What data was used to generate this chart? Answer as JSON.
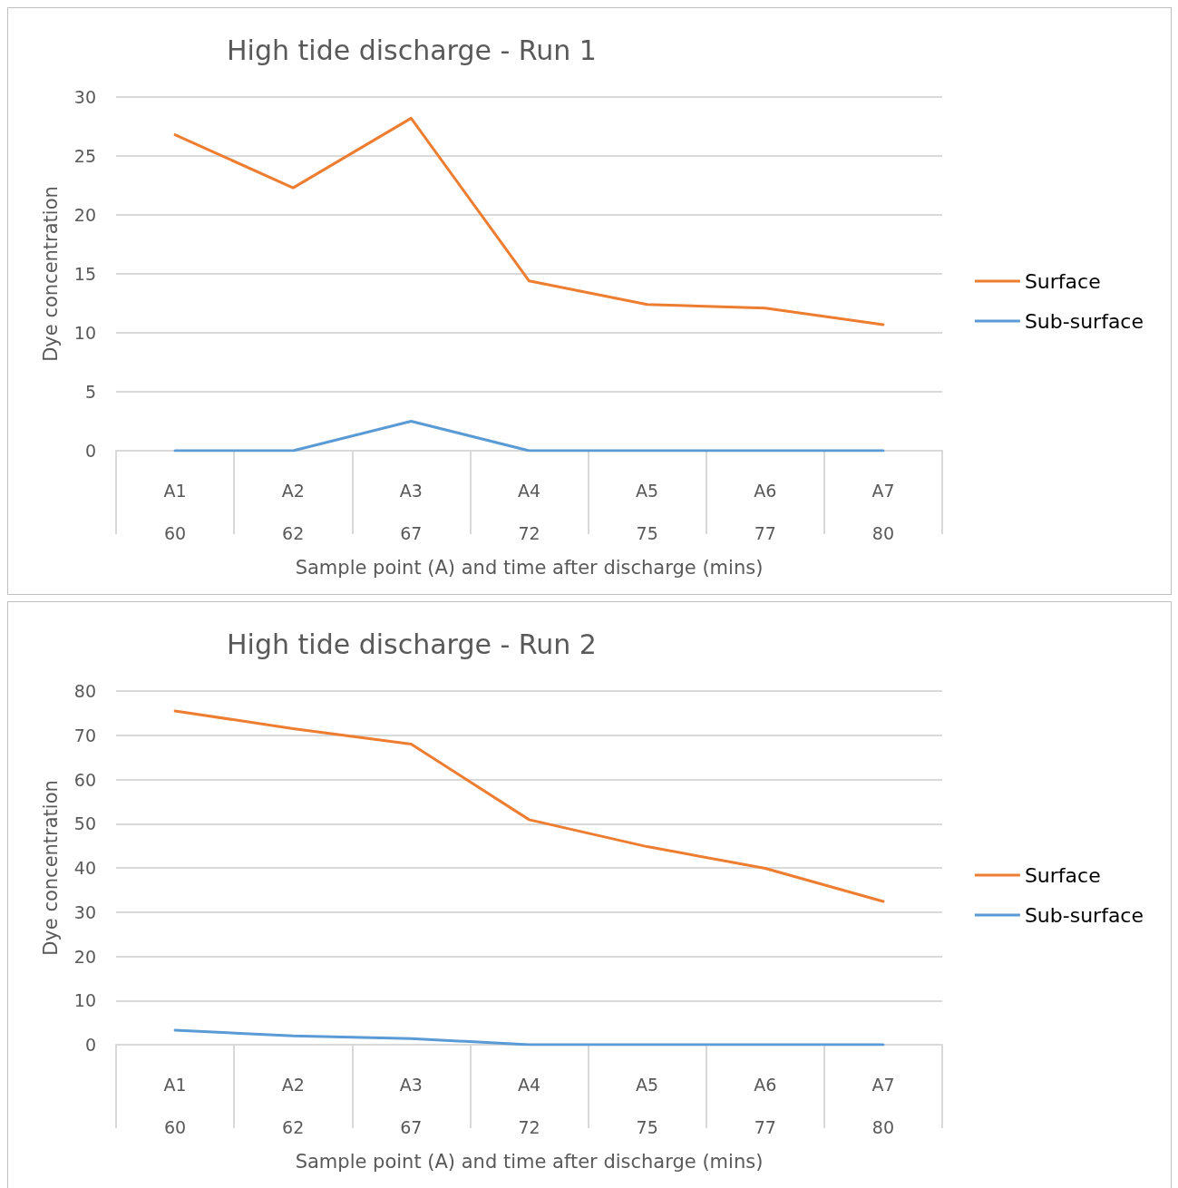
{
  "chart_data": [
    {
      "type": "line",
      "title": "High tide discharge - Run 1",
      "xlabel": "Sample point (A) and time after discharge (mins)",
      "ylabel": "Dye concentration",
      "categories": [
        "A1\n60",
        "A2\n62",
        "A3\n67",
        "A4\n72",
        "A5\n75",
        "A6\n77",
        "A7\n80"
      ],
      "series": [
        {
          "name": "Surface",
          "color": "#ed7d31",
          "values": [
            26.8,
            22.3,
            28.2,
            14.4,
            12.4,
            12.1,
            10.7
          ]
        },
        {
          "name": "Sub-surface",
          "color": "#5b9bd5",
          "values": [
            0,
            0,
            2.5,
            0,
            0,
            0,
            0
          ]
        }
      ],
      "ylim": [
        0,
        30
      ],
      "yticks": [
        0,
        5,
        10,
        15,
        20,
        25,
        30
      ],
      "grid": "y",
      "legend": "right",
      "marker": "none"
    },
    {
      "type": "line",
      "title": "High tide discharge - Run 2",
      "xlabel": "Sample point (A) and time after discharge (mins)",
      "ylabel": "Dye concentration",
      "categories": [
        "A1\n60",
        "A2\n62",
        "A3\n67",
        "A4\n72",
        "A5\n75",
        "A6\n77",
        "A7\n80"
      ],
      "series": [
        {
          "name": "Surface",
          "color": "#ed7d31",
          "values": [
            75.5,
            71.5,
            68,
            50.9,
            44.8,
            39.9,
            32.4
          ]
        },
        {
          "name": "Sub-surface",
          "color": "#5b9bd5",
          "values": [
            3.3,
            2,
            1.4,
            0,
            0,
            0,
            0
          ]
        }
      ],
      "ylim": [
        0,
        80
      ],
      "yticks": [
        0,
        10,
        20,
        30,
        40,
        50,
        60,
        70,
        80
      ],
      "grid": "y",
      "legend": "right",
      "marker": "none"
    }
  ]
}
